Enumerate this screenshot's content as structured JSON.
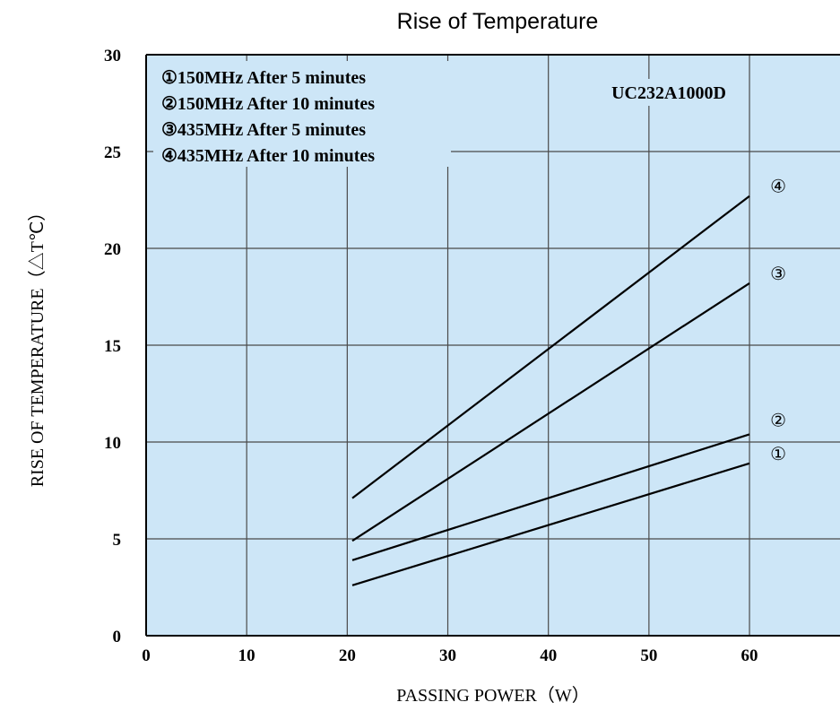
{
  "colors": {
    "plot_background": "#cde6f7",
    "grid": "#4a4a4a",
    "line": "#000000"
  },
  "chart_data": {
    "type": "line",
    "title": "Rise of Temperature",
    "xlabel": "PASSING POWER（W）",
    "ylabel": "RISE OF TEMPERATURE（△T℃）",
    "xlim": [
      0,
      69
    ],
    "ylim": [
      0,
      30
    ],
    "x_ticks": [
      "0",
      "10",
      "20",
      "30",
      "40",
      "50",
      "60"
    ],
    "y_ticks": [
      "0",
      "5",
      "10",
      "15",
      "20",
      "25",
      "30"
    ],
    "grid": true,
    "model": "UC232A1000D",
    "legend": [
      "①150MHz After 5 minutes",
      "②150MHz After 10 minutes",
      "③435MHz After 5 minutes",
      "④435MHz After 10 minutes"
    ],
    "series": [
      {
        "marker": "①",
        "x": [
          20.5,
          60
        ],
        "y": [
          2.6,
          8.9
        ]
      },
      {
        "marker": "②",
        "x": [
          20.5,
          60
        ],
        "y": [
          3.9,
          10.4
        ]
      },
      {
        "marker": "③",
        "x": [
          20.5,
          60
        ],
        "y": [
          4.9,
          18.2
        ]
      },
      {
        "marker": "④",
        "x": [
          20.5,
          60
        ],
        "y": [
          7.1,
          22.7
        ]
      }
    ]
  }
}
